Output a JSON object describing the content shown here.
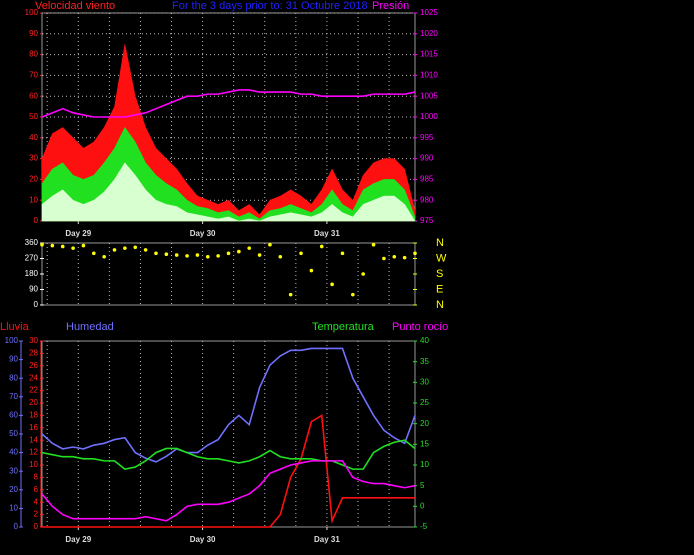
{
  "chart_data": [
    {
      "type": "area",
      "title": "For the 3 days prior to: 31 Octubre 2018",
      "ylabel": "Velocidad viento",
      "y2label": "Presión",
      "ycolor": "#ff2020",
      "y2color": "#ff00ff",
      "x": [
        0,
        2,
        4,
        6,
        8,
        10,
        12,
        14,
        16,
        18,
        20,
        22,
        24,
        26,
        28,
        30,
        32,
        34,
        36,
        38,
        40,
        42,
        44,
        46,
        48,
        50,
        52,
        54,
        56,
        58,
        60,
        62,
        64,
        66,
        68,
        70,
        72
      ],
      "xlim": [
        0,
        72
      ],
      "xticks": [
        {
          "value": 7,
          "label": "Day 29"
        },
        {
          "value": 31,
          "label": "Day 30"
        },
        {
          "value": 55,
          "label": "Day 31"
        }
      ],
      "xgrid": [
        1,
        7,
        13,
        19,
        25,
        31,
        37,
        43,
        49,
        55,
        61,
        67
      ],
      "ylim": [
        0,
        100
      ],
      "yticks": [
        0,
        10,
        20,
        30,
        40,
        50,
        60,
        70,
        80,
        90,
        100
      ],
      "y2lim": [
        975,
        1025
      ],
      "y2ticks": [
        975,
        980,
        985,
        990,
        995,
        1000,
        1005,
        1010,
        1015,
        1020,
        1025
      ],
      "grid": true,
      "series": [
        {
          "color": "#ff1010",
          "values": [
            30,
            42,
            45,
            40,
            35,
            38,
            45,
            55,
            85,
            60,
            45,
            35,
            30,
            25,
            18,
            12,
            10,
            8,
            10,
            5,
            8,
            3,
            10,
            12,
            15,
            12,
            8,
            15,
            25,
            15,
            10,
            22,
            28,
            30,
            30,
            25,
            5
          ]
        },
        {
          "color": "#20e020",
          "values": [
            18,
            25,
            28,
            22,
            20,
            22,
            28,
            35,
            45,
            38,
            28,
            22,
            18,
            15,
            10,
            7,
            6,
            4,
            5,
            2,
            4,
            1,
            5,
            6,
            8,
            6,
            4,
            8,
            15,
            8,
            5,
            15,
            18,
            20,
            20,
            15,
            2
          ]
        },
        {
          "color": "#d8ffd0",
          "values": [
            8,
            12,
            15,
            10,
            8,
            10,
            14,
            20,
            28,
            22,
            15,
            10,
            8,
            7,
            4,
            3,
            2,
            1,
            2,
            0,
            1,
            0,
            2,
            3,
            4,
            3,
            2,
            4,
            8,
            4,
            2,
            8,
            10,
            12,
            12,
            8,
            0
          ]
        },
        {
          "color": "#ff00ff",
          "axis": "y2",
          "values": [
            1000,
            1001,
            1002,
            1001,
            1000.5,
            1000,
            1000,
            1000,
            1000,
            1000.5,
            1001,
            1002,
            1003,
            1004,
            1005,
            1005,
            1005.5,
            1005.5,
            1006,
            1006.5,
            1006.5,
            1006,
            1006,
            1006,
            1006,
            1005.5,
            1005.5,
            1005,
            1005,
            1005,
            1005,
            1005,
            1005.5,
            1005.5,
            1005.5,
            1005.5,
            1006
          ]
        }
      ]
    },
    {
      "type": "scatter",
      "ycolor": "#ffffff",
      "y2color": "#ffff00",
      "x": [
        0,
        2,
        4,
        6,
        8,
        10,
        12,
        14,
        16,
        18,
        20,
        22,
        24,
        26,
        28,
        30,
        32,
        34,
        36,
        38,
        40,
        42,
        44,
        46,
        48,
        50,
        52,
        54,
        56,
        58,
        60,
        62,
        64,
        66,
        68,
        70,
        72
      ],
      "xlim": [
        0,
        72
      ],
      "xgrid": [
        1,
        7,
        13,
        19,
        25,
        31,
        37,
        43,
        49,
        55,
        61,
        67
      ],
      "ylim": [
        0,
        360
      ],
      "yticks": [
        0,
        90,
        180,
        270,
        360
      ],
      "y2lim": [
        0,
        360
      ],
      "y2ticks": [
        {
          "value": 360,
          "label": "N"
        },
        {
          "value": 270,
          "label": "W"
        },
        {
          "value": 180,
          "label": "S"
        },
        {
          "value": 90,
          "label": "E"
        },
        {
          "value": 0,
          "label": "N"
        }
      ],
      "grid": true,
      "series": [
        {
          "color": "#ffff00",
          "values": [
            350,
            345,
            340,
            330,
            345,
            300,
            280,
            320,
            330,
            335,
            320,
            300,
            295,
            290,
            285,
            290,
            280,
            285,
            300,
            310,
            330,
            290,
            350,
            280,
            60,
            300,
            200,
            340,
            120,
            300,
            60,
            180,
            350,
            270,
            280,
            275,
            300
          ]
        }
      ]
    },
    {
      "type": "line",
      "ycolor": "#ff2020",
      "y2color": "#20e020",
      "y3color": "#7070ff",
      "x": [
        0,
        2,
        4,
        6,
        8,
        10,
        12,
        14,
        16,
        18,
        20,
        22,
        24,
        26,
        28,
        30,
        32,
        34,
        36,
        38,
        40,
        42,
        44,
        46,
        48,
        50,
        52,
        54,
        56,
        58,
        60,
        62,
        64,
        66,
        68,
        70,
        72
      ],
      "xlim": [
        0,
        72
      ],
      "xticks": [
        {
          "value": 7,
          "label": "Day 29"
        },
        {
          "value": 31,
          "label": "Day 30"
        },
        {
          "value": 55,
          "label": "Day 31"
        }
      ],
      "xgrid": [
        1,
        7,
        13,
        19,
        25,
        31,
        37,
        43,
        49,
        55,
        61,
        67
      ],
      "ylim": [
        0,
        30
      ],
      "yticks": [
        0,
        2,
        4,
        6,
        8,
        10,
        12,
        14,
        16,
        18,
        20,
        22,
        24,
        26,
        28,
        30
      ],
      "y3lim": [
        0,
        100
      ],
      "y3ticks": [
        0,
        10,
        20,
        30,
        40,
        50,
        60,
        70,
        80,
        90,
        100
      ],
      "y2lim": [
        -5,
        40
      ],
      "y2ticks": [
        -5,
        0,
        5,
        10,
        15,
        20,
        25,
        30,
        35,
        40
      ],
      "grid": true,
      "series": [
        {
          "name": "Lluvia",
          "color": "#ff1010",
          "values": [
            0,
            0,
            0,
            0,
            0,
            0,
            0,
            0,
            0,
            0,
            0,
            0,
            0,
            0,
            0,
            0,
            0,
            0,
            0,
            0,
            0,
            0,
            0,
            2,
            8,
            11,
            17,
            18,
            1,
            4.7,
            4.7,
            4.7,
            4.7,
            4.7,
            4.7,
            4.7,
            4.7
          ]
        },
        {
          "name": "Humedad",
          "color": "#7070ff",
          "axis": "y3",
          "values": [
            50,
            45,
            42,
            43,
            42,
            44,
            45,
            47,
            48,
            40,
            37,
            35,
            38,
            42,
            40,
            40,
            44,
            47,
            55,
            60,
            55,
            75,
            87,
            92,
            95,
            95,
            96,
            96,
            96,
            96,
            80,
            70,
            60,
            52,
            48,
            45,
            60
          ]
        },
        {
          "name": "Temperatura",
          "color": "#20e020",
          "axis": "y2",
          "values": [
            13,
            12.5,
            12,
            12,
            11.5,
            11.5,
            11,
            11,
            9,
            9.5,
            11,
            13,
            14,
            14,
            13,
            12,
            11.5,
            11.5,
            11,
            10.5,
            11,
            12,
            13.5,
            12,
            11.5,
            11.5,
            11.5,
            11,
            11,
            10,
            9,
            9,
            13,
            14.5,
            15.5,
            16,
            14
          ]
        },
        {
          "name": "Punto rocío",
          "color": "#ff00ff",
          "axis": "y2",
          "values": [
            3,
            0,
            -2,
            -3,
            -3,
            -3,
            -3,
            -3,
            -3,
            -3,
            -2.5,
            -3,
            -3.5,
            -2,
            0,
            0.5,
            0.5,
            0.5,
            1,
            2,
            3,
            5,
            8,
            9,
            10,
            10.5,
            11,
            11,
            11,
            11,
            7,
            6,
            5.5,
            5.5,
            5,
            4.5,
            5
          ]
        }
      ]
    }
  ]
}
